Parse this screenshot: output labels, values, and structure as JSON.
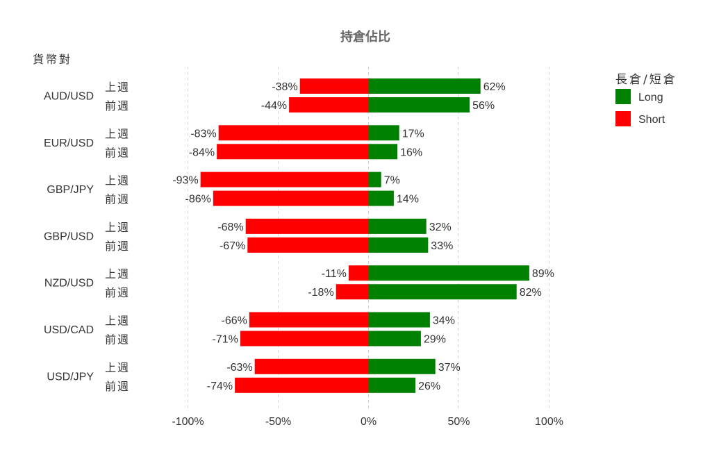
{
  "chart_data": {
    "type": "bar",
    "orientation": "horizontal",
    "diverging": true,
    "title": "持倉佔比",
    "category_header": "貨幣對",
    "categories": [
      "AUD/USD",
      "EUR/USD",
      "GBP/JPY",
      "GBP/USD",
      "NZD/USD",
      "USD/CAD",
      "USD/JPY"
    ],
    "periods": [
      "上週",
      "前週"
    ],
    "xlim": [
      -100,
      100
    ],
    "x_ticks": [
      -100,
      -50,
      0,
      50,
      100
    ],
    "x_tick_labels": [
      "-100%",
      "-50%",
      "0%",
      "50%",
      "100%"
    ],
    "grid": "vertical dashed",
    "legend": {
      "title": "長倉/短倉",
      "position": "top-right",
      "items": [
        "Long",
        "Short"
      ]
    },
    "series": [
      {
        "name": "Long",
        "color": "#008000",
        "values": [
          [
            62,
            56
          ],
          [
            17,
            16
          ],
          [
            7,
            14
          ],
          [
            32,
            33
          ],
          [
            89,
            82
          ],
          [
            34,
            29
          ],
          [
            37,
            26
          ]
        ],
        "labels": [
          [
            "62%",
            "56%"
          ],
          [
            "17%",
            "16%"
          ],
          [
            "7%",
            "14%"
          ],
          [
            "32%",
            "33%"
          ],
          [
            "89%",
            "82%"
          ],
          [
            "34%",
            "29%"
          ],
          [
            "37%",
            "26%"
          ]
        ]
      },
      {
        "name": "Short",
        "color": "#ff0000",
        "values": [
          [
            -38,
            -44
          ],
          [
            -83,
            -84
          ],
          [
            -93,
            -86
          ],
          [
            -68,
            -67
          ],
          [
            -11,
            -18
          ],
          [
            -66,
            -71
          ],
          [
            -63,
            -74
          ]
        ],
        "labels": [
          [
            "-38%",
            "-44%"
          ],
          [
            "-83%",
            "-84%"
          ],
          [
            "-93%",
            "-86%"
          ],
          [
            "-68%",
            "-67%"
          ],
          [
            "-11%",
            "-18%"
          ],
          [
            "-66%",
            "-71%"
          ],
          [
            "-63%",
            "-74%"
          ]
        ]
      }
    ]
  }
}
